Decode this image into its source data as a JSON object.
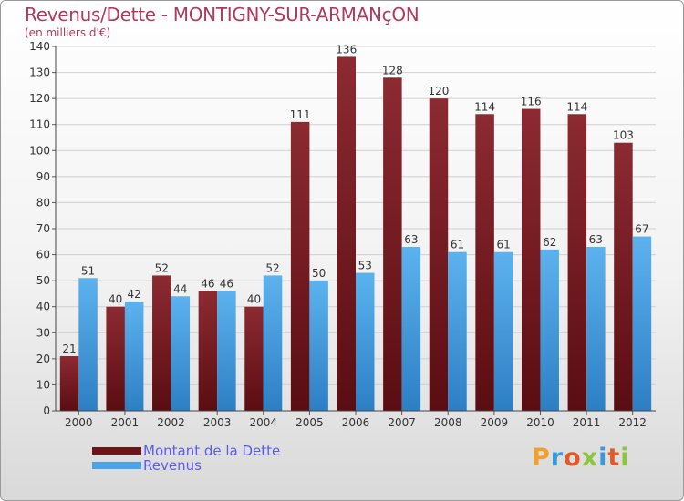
{
  "header": {
    "title": "Revenus/Dette - MONTIGNY-SUR-ARMANçON",
    "subtitle": "(en milliers d'€)"
  },
  "colors": {
    "dette": "#7a1f24",
    "revenus": "#4aa3e6"
  },
  "logo": {
    "text": "Proxiti",
    "letter_colors": [
      "#f0a030",
      "#3a9ad9",
      "#e05a2a",
      "#8cc63f",
      "#3a9ad9",
      "#e05a2a",
      "#8cc63f"
    ]
  },
  "chart_data": {
    "type": "bar",
    "title": "Revenus/Dette - MONTIGNY-SUR-ARMANçON",
    "subtitle": "(en milliers d'€)",
    "categories": [
      "2000",
      "2001",
      "2002",
      "2003",
      "2004",
      "2005",
      "2006",
      "2007",
      "2008",
      "2009",
      "2010",
      "2011",
      "2012"
    ],
    "series": [
      {
        "name": "Montant de la Dette",
        "values": [
          21,
          40,
          52,
          46,
          40,
          111,
          136,
          128,
          120,
          114,
          116,
          114,
          103
        ]
      },
      {
        "name": "Revenus",
        "values": [
          51,
          42,
          44,
          46,
          52,
          50,
          53,
          63,
          61,
          61,
          62,
          63,
          67
        ]
      }
    ],
    "ylim": [
      0,
      140
    ],
    "yticks": [
      0,
      10,
      20,
      30,
      40,
      50,
      60,
      70,
      80,
      90,
      100,
      110,
      120,
      130,
      140
    ],
    "grid": true,
    "legend_position": "bottom-left"
  }
}
